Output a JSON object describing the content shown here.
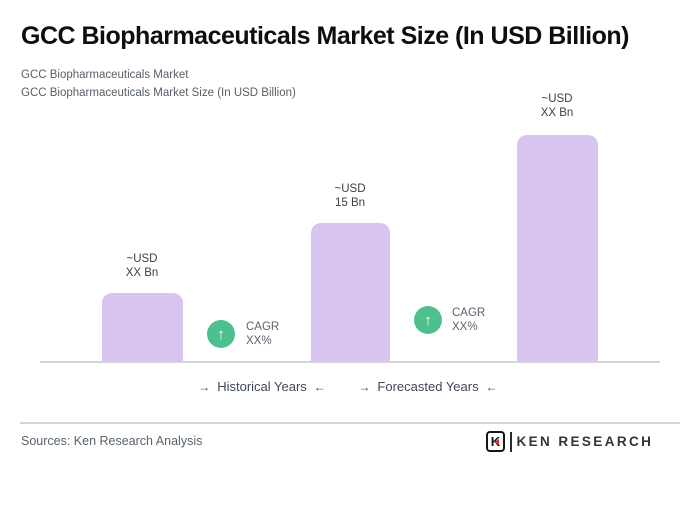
{
  "page": {
    "title": "GCC Biopharmaceuticals Market Size (In USD Billion)",
    "subtitle_line1": "GCC Biopharmaceuticals Market",
    "subtitle_line2": "GCC Biopharmaceuticals Market Size (In USD Billion)"
  },
  "chart_data": {
    "type": "bar",
    "title": "GCC Biopharmaceuticals Market Size (In USD Billion)",
    "unit": "USD Billion",
    "bars": [
      {
        "label_line1": "~USD",
        "label_line2": "XX Bn",
        "value_text": "~USD XX Bn",
        "value": null,
        "height_ratio": 0.3
      },
      {
        "label_line1": "~USD",
        "label_line2": "15 Bn",
        "value_text": "~USD 15 Bn",
        "value": 15,
        "height_ratio": 0.61
      },
      {
        "label_line1": "~USD",
        "label_line2": "XX Bn",
        "value_text": "~USD XX Bn",
        "value": null,
        "height_ratio": 1.0
      }
    ],
    "cagr": [
      {
        "line1": "CAGR",
        "line2": "XX%",
        "arrow_glyph": "↑"
      },
      {
        "line1": "CAGR",
        "line2": "XX%",
        "arrow_glyph": "↑"
      }
    ],
    "axis_groups": [
      {
        "label": "Historical Years"
      },
      {
        "label": "Forecasted Years"
      }
    ],
    "arrows": {
      "right": "→",
      "left": "←"
    },
    "legend": "none",
    "grid": "off",
    "colors": {
      "bar_fill": "#d8c4f0",
      "cagr_badge": "#4ec08f",
      "logo_red": "#d92f2f",
      "divider": "#d2d4d9"
    }
  },
  "footer": {
    "sources": "Sources: Ken Research Analysis",
    "logo_mark_letter": "K",
    "logo_wordmark": "KEN RESEARCH"
  }
}
